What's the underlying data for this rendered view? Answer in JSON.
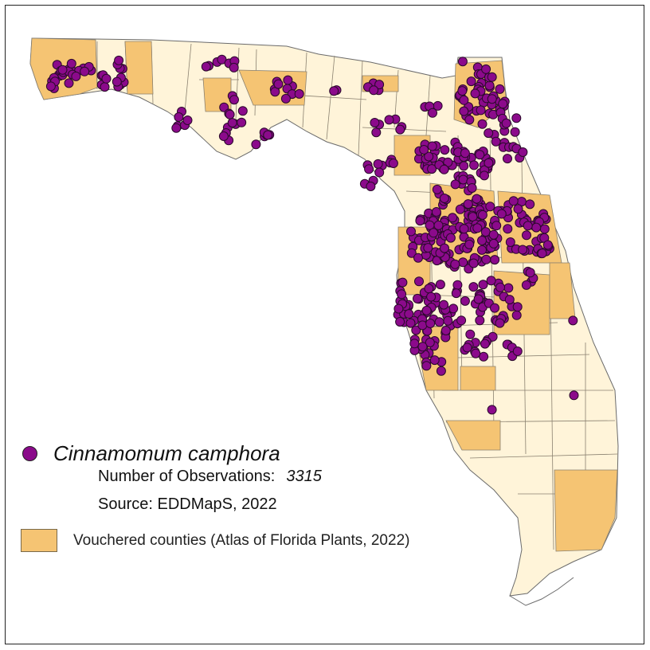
{
  "colors": {
    "observation": "#8b0a8b",
    "observation_outline": "#2a0a2a",
    "vouchered": "#f5c473",
    "county": "#fff4d9",
    "county_border": "#8a8170",
    "coast": "#6b6b6b"
  },
  "legend": {
    "species_name": "Cinnamomum camphora",
    "observations_label": "Number of Observations:",
    "observations_count": "3315",
    "source": "Source: EDDMapS, 2022",
    "vouchered_label": "Vouchered counties (Atlas of Florida Plants, 2022)"
  },
  "map": {
    "region": "Florida",
    "layers": [
      "counties",
      "vouchered-counties",
      "observation-points"
    ]
  }
}
